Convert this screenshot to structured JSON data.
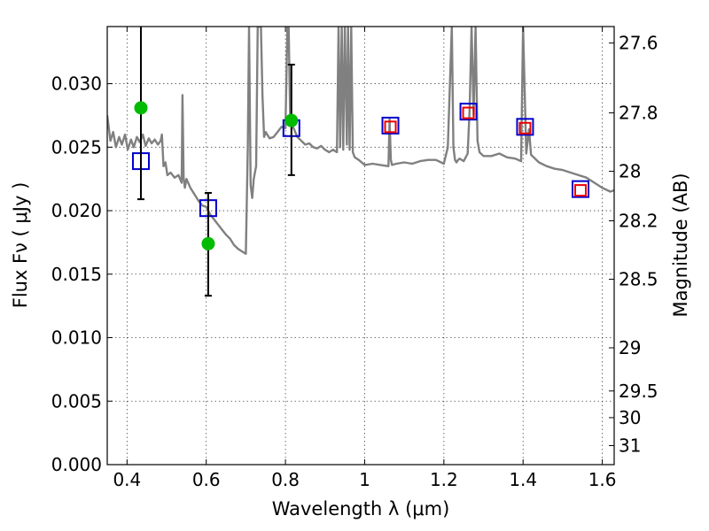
{
  "chart_data": {
    "type": "scatter",
    "xlabel": "Wavelength  λ (μm)",
    "ylabel": "Flux  Fν  ( μJy )",
    "ylabel_right": "Magnitude (AB)",
    "xlim": [
      0.35,
      1.63
    ],
    "ylim": [
      0.0,
      0.0345
    ],
    "grid": true,
    "x_ticks": [
      0.4,
      0.6,
      0.8,
      1.0,
      1.2,
      1.4,
      1.6
    ],
    "x_tick_labels": [
      "0.4",
      "0.6",
      "0.8",
      "1",
      "1.2",
      "1.4",
      "1.6"
    ],
    "y_ticks": [
      0.0,
      0.005,
      0.01,
      0.015,
      0.02,
      0.025,
      0.03
    ],
    "y_tick_labels": [
      "0.000",
      "0.005",
      "0.010",
      "0.015",
      "0.020",
      "0.025",
      "0.030"
    ],
    "right_ticks": [
      {
        "label": "27.6",
        "flux": 0.0332
      },
      {
        "label": "27.8",
        "flux": 0.0277
      },
      {
        "label": "28",
        "flux": 0.0231
      },
      {
        "label": "28.2",
        "flux": 0.0192
      },
      {
        "label": "28.5",
        "flux": 0.0146
      },
      {
        "label": "29",
        "flux": 0.0092
      },
      {
        "label": "29.5",
        "flux": 0.0058
      },
      {
        "label": "30",
        "flux": 0.0037
      },
      {
        "label": "31",
        "flux": 0.0015
      }
    ],
    "series": [
      {
        "kind": "line",
        "color": "#808080",
        "x": [
          0.35,
          0.358,
          0.365,
          0.372,
          0.38,
          0.387,
          0.395,
          0.402,
          0.41,
          0.417,
          0.425,
          0.432,
          0.44,
          0.447,
          0.455,
          0.462,
          0.47,
          0.478,
          0.485,
          0.488,
          0.492,
          0.497,
          0.502,
          0.51,
          0.52,
          0.53,
          0.538,
          0.54,
          0.543,
          0.546,
          0.55,
          0.56,
          0.57,
          0.58,
          0.59,
          0.6,
          0.61,
          0.62,
          0.63,
          0.64,
          0.65,
          0.66,
          0.67,
          0.68,
          0.69,
          0.7,
          0.705,
          0.708,
          0.712,
          0.716,
          0.72,
          0.726,
          0.73,
          0.738,
          0.742,
          0.746,
          0.75,
          0.754,
          0.76,
          0.77,
          0.78,
          0.79,
          0.8,
          0.805,
          0.808,
          0.812,
          0.816,
          0.822,
          0.83,
          0.84,
          0.85,
          0.86,
          0.87,
          0.88,
          0.89,
          0.9,
          0.91,
          0.92,
          0.93,
          0.934,
          0.938,
          0.942,
          0.946,
          0.95,
          0.955,
          0.958,
          0.962,
          0.966,
          0.97,
          0.975,
          0.985,
          1.0,
          1.02,
          1.04,
          1.06,
          1.063,
          1.066,
          1.069,
          1.08,
          1.1,
          1.12,
          1.14,
          1.16,
          1.18,
          1.2,
          1.21,
          1.22,
          1.224,
          1.228,
          1.232,
          1.236,
          1.24,
          1.25,
          1.26,
          1.265,
          1.27,
          1.275,
          1.28,
          1.285,
          1.29,
          1.3,
          1.32,
          1.34,
          1.36,
          1.38,
          1.395,
          1.4,
          1.408,
          1.415,
          1.42,
          1.44,
          1.46,
          1.48,
          1.5,
          1.52,
          1.54,
          1.56,
          1.58,
          1.6,
          1.62,
          1.63
        ],
        "y": [
          0.0275,
          0.0255,
          0.0262,
          0.025,
          0.0258,
          0.0252,
          0.026,
          0.0248,
          0.0256,
          0.025,
          0.0258,
          0.0254,
          0.026,
          0.0251,
          0.0257,
          0.0253,
          0.0256,
          0.0252,
          0.0255,
          0.026,
          0.0235,
          0.0238,
          0.0228,
          0.023,
          0.0226,
          0.0228,
          0.0222,
          0.0291,
          0.0226,
          0.0218,
          0.0225,
          0.0218,
          0.0213,
          0.0208,
          0.0204,
          0.0203,
          0.0197,
          0.0193,
          0.0189,
          0.0185,
          0.0181,
          0.0178,
          0.0173,
          0.017,
          0.0168,
          0.0166,
          0.025,
          0.0345,
          0.022,
          0.021,
          0.0225,
          0.0235,
          0.0345,
          0.0345,
          0.029,
          0.0258,
          0.0262,
          0.026,
          0.0257,
          0.0258,
          0.0262,
          0.0266,
          0.0265,
          0.0345,
          0.0345,
          0.027,
          0.0268,
          0.0264,
          0.0258,
          0.0255,
          0.0252,
          0.0253,
          0.025,
          0.0249,
          0.0251,
          0.0248,
          0.0246,
          0.0248,
          0.0246,
          0.0345,
          0.025,
          0.0345,
          0.0248,
          0.0345,
          0.0252,
          0.0345,
          0.0248,
          0.0345,
          0.0246,
          0.0242,
          0.024,
          0.0236,
          0.0237,
          0.0236,
          0.0235,
          0.0272,
          0.024,
          0.0236,
          0.0237,
          0.0238,
          0.0237,
          0.0239,
          0.024,
          0.024,
          0.0237,
          0.025,
          0.0345,
          0.025,
          0.024,
          0.0238,
          0.024,
          0.0241,
          0.0239,
          0.0245,
          0.028,
          0.0345,
          0.0275,
          0.0345,
          0.0255,
          0.0246,
          0.0243,
          0.0243,
          0.0245,
          0.0242,
          0.0241,
          0.0239,
          0.0345,
          0.0245,
          0.0264,
          0.0244,
          0.0238,
          0.0235,
          0.0233,
          0.0232,
          0.023,
          0.0228,
          0.0226,
          0.0222,
          0.0218,
          0.0215,
          0.0216
        ]
      },
      {
        "kind": "open-square",
        "color": "#0000cc",
        "x": [
          0.435,
          0.605,
          0.815,
          1.065,
          1.262,
          1.405,
          1.545
        ],
        "y": [
          0.0239,
          0.0202,
          0.0265,
          0.0267,
          0.0278,
          0.0266,
          0.0217
        ]
      },
      {
        "kind": "open-square",
        "color": "#ee0000",
        "x": [
          1.065,
          1.262,
          1.405,
          1.545
        ],
        "y": [
          0.0266,
          0.0277,
          0.0265,
          0.0216
        ]
      },
      {
        "kind": "filled-circle",
        "color": "#00bb00",
        "x": [
          0.435,
          0.605,
          0.815
        ],
        "y": [
          0.0281,
          0.0174,
          0.0271
        ],
        "yerr_low": [
          0.0209,
          0.0133,
          0.0228
        ],
        "yerr_high": [
          0.0345,
          0.0214,
          0.0315
        ]
      }
    ]
  }
}
